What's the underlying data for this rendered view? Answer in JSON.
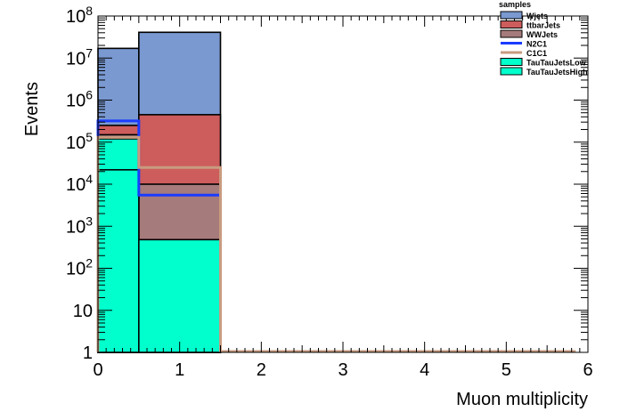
{
  "chart_data": {
    "type": "bar",
    "stacked": true,
    "histogram": true,
    "xlabel": "Muon multiplicity",
    "ylabel": "Events",
    "xlim": [
      0,
      6
    ],
    "ylim": [
      1,
      100000000
    ],
    "yscale": "log",
    "x_ticks": [
      "0",
      "1",
      "2",
      "3",
      "4",
      "5",
      "6"
    ],
    "y_ticks": [
      "1",
      "10",
      "10^2",
      "10^3",
      "10^4",
      "10^5",
      "10^6",
      "10^7",
      "10^8"
    ],
    "bin_edges": [
      0,
      0.5,
      1.5
    ],
    "legend": {
      "title": "samples",
      "placement": "top-right"
    },
    "series": [
      {
        "name": "Wjets",
        "color": "#7a99d1",
        "style": "fill",
        "stack_tops": [
          17000000,
          41000000
        ]
      },
      {
        "name": "ttbarJets",
        "color": "#cd5c5c",
        "style": "fill",
        "stack_tops": [
          250000,
          450000
        ]
      },
      {
        "name": "WWJets",
        "color": "#a67b7b",
        "style": "fill",
        "stack_tops": [
          150000,
          10000
        ]
      },
      {
        "name": "N2C1",
        "color": "#1a3cff",
        "style": "line",
        "values": [
          320000,
          5500
        ]
      },
      {
        "name": "C1C1",
        "color": "#c89b80",
        "style": "line",
        "values": [
          130000,
          25000
        ]
      },
      {
        "name": "TauTauJetsLow",
        "color": "#00ffcc",
        "style": "fill",
        "stack_tops": [
          120000,
          480
        ]
      },
      {
        "name": "TauTauJetsHigh",
        "color": "#00ffcc",
        "style": "fill",
        "stack_tops": [
          22000,
          480
        ]
      }
    ]
  }
}
